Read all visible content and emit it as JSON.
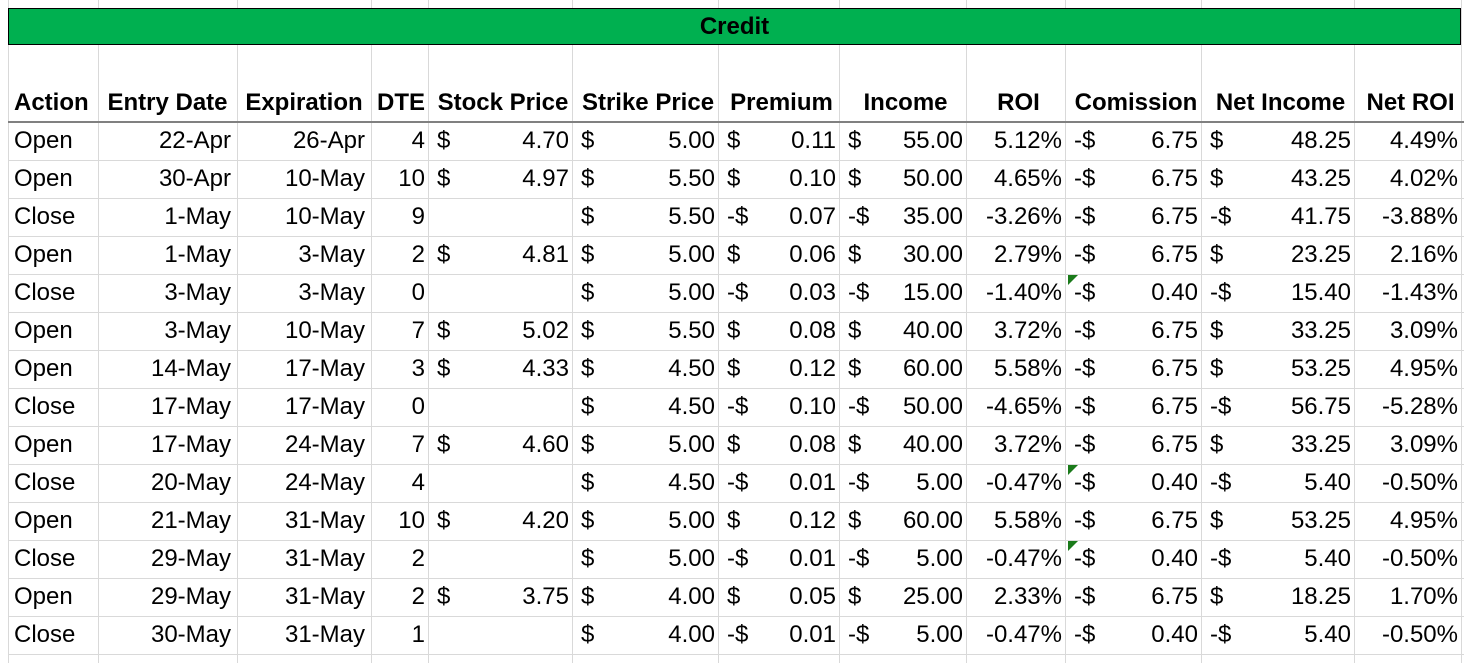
{
  "banner": {
    "title": "Credit",
    "color": "#00b050"
  },
  "columns": [
    "Action",
    "Entry Date",
    "Expiration",
    "DTE",
    "Stock Price",
    "Strike Price",
    "Premium",
    "Income",
    "ROI",
    "Comission",
    "Net Income",
    "Net ROI"
  ],
  "rows": [
    {
      "action": "Open",
      "entry": "22-Apr",
      "exp": "26-Apr",
      "dte": "4",
      "stock": "4.70",
      "stock_sign": "$",
      "strike": "5.00",
      "prem_sign": "$",
      "prem": "0.11",
      "inc_sign": "$",
      "inc": "55.00",
      "roi": "5.12%",
      "com_sign": "-$",
      "com": "6.75",
      "net_sign": "$",
      "net": "48.25",
      "netroi": "4.49%",
      "flag": false
    },
    {
      "action": "Open",
      "entry": "30-Apr",
      "exp": "10-May",
      "dte": "10",
      "stock": "4.97",
      "stock_sign": "$",
      "strike": "5.50",
      "prem_sign": "$",
      "prem": "0.10",
      "inc_sign": "$",
      "inc": "50.00",
      "roi": "4.65%",
      "com_sign": "-$",
      "com": "6.75",
      "net_sign": "$",
      "net": "43.25",
      "netroi": "4.02%",
      "flag": false
    },
    {
      "action": "Close",
      "entry": "1-May",
      "exp": "10-May",
      "dte": "9",
      "stock": "",
      "stock_sign": "",
      "strike": "5.50",
      "prem_sign": "-$",
      "prem": "0.07",
      "inc_sign": "-$",
      "inc": "35.00",
      "roi": "-3.26%",
      "com_sign": "-$",
      "com": "6.75",
      "net_sign": "-$",
      "net": "41.75",
      "netroi": "-3.88%",
      "flag": false
    },
    {
      "action": "Open",
      "entry": "1-May",
      "exp": "3-May",
      "dte": "2",
      "stock": "4.81",
      "stock_sign": "$",
      "strike": "5.00",
      "prem_sign": "$",
      "prem": "0.06",
      "inc_sign": "$",
      "inc": "30.00",
      "roi": "2.79%",
      "com_sign": "-$",
      "com": "6.75",
      "net_sign": "$",
      "net": "23.25",
      "netroi": "2.16%",
      "flag": false
    },
    {
      "action": "Close",
      "entry": "3-May",
      "exp": "3-May",
      "dte": "0",
      "stock": "",
      "stock_sign": "",
      "strike": "5.00",
      "prem_sign": "-$",
      "prem": "0.03",
      "inc_sign": "-$",
      "inc": "15.00",
      "roi": "-1.40%",
      "com_sign": "-$",
      "com": "0.40",
      "net_sign": "-$",
      "net": "15.40",
      "netroi": "-1.43%",
      "flag": true
    },
    {
      "action": "Open",
      "entry": "3-May",
      "exp": "10-May",
      "dte": "7",
      "stock": "5.02",
      "stock_sign": "$",
      "strike": "5.50",
      "prem_sign": "$",
      "prem": "0.08",
      "inc_sign": "$",
      "inc": "40.00",
      "roi": "3.72%",
      "com_sign": "-$",
      "com": "6.75",
      "net_sign": "$",
      "net": "33.25",
      "netroi": "3.09%",
      "flag": false
    },
    {
      "action": "Open",
      "entry": "14-May",
      "exp": "17-May",
      "dte": "3",
      "stock": "4.33",
      "stock_sign": "$",
      "strike": "4.50",
      "prem_sign": "$",
      "prem": "0.12",
      "inc_sign": "$",
      "inc": "60.00",
      "roi": "5.58%",
      "com_sign": "-$",
      "com": "6.75",
      "net_sign": "$",
      "net": "53.25",
      "netroi": "4.95%",
      "flag": false
    },
    {
      "action": "Close",
      "entry": "17-May",
      "exp": "17-May",
      "dte": "0",
      "stock": "",
      "stock_sign": "",
      "strike": "4.50",
      "prem_sign": "-$",
      "prem": "0.10",
      "inc_sign": "-$",
      "inc": "50.00",
      "roi": "-4.65%",
      "com_sign": "-$",
      "com": "6.75",
      "net_sign": "-$",
      "net": "56.75",
      "netroi": "-5.28%",
      "flag": false
    },
    {
      "action": "Open",
      "entry": "17-May",
      "exp": "24-May",
      "dte": "7",
      "stock": "4.60",
      "stock_sign": "$",
      "strike": "5.00",
      "prem_sign": "$",
      "prem": "0.08",
      "inc_sign": "$",
      "inc": "40.00",
      "roi": "3.72%",
      "com_sign": "-$",
      "com": "6.75",
      "net_sign": "$",
      "net": "33.25",
      "netroi": "3.09%",
      "flag": false
    },
    {
      "action": "Close",
      "entry": "20-May",
      "exp": "24-May",
      "dte": "4",
      "stock": "",
      "stock_sign": "",
      "strike": "4.50",
      "prem_sign": "-$",
      "prem": "0.01",
      "inc_sign": "-$",
      "inc": "5.00",
      "roi": "-0.47%",
      "com_sign": "-$",
      "com": "0.40",
      "net_sign": "-$",
      "net": "5.40",
      "netroi": "-0.50%",
      "flag": true
    },
    {
      "action": "Open",
      "entry": "21-May",
      "exp": "31-May",
      "dte": "10",
      "stock": "4.20",
      "stock_sign": "$",
      "strike": "5.00",
      "prem_sign": "$",
      "prem": "0.12",
      "inc_sign": "$",
      "inc": "60.00",
      "roi": "5.58%",
      "com_sign": "-$",
      "com": "6.75",
      "net_sign": "$",
      "net": "53.25",
      "netroi": "4.95%",
      "flag": false
    },
    {
      "action": "Close",
      "entry": "29-May",
      "exp": "31-May",
      "dte": "2",
      "stock": "",
      "stock_sign": "",
      "strike": "5.00",
      "prem_sign": "-$",
      "prem": "0.01",
      "inc_sign": "-$",
      "inc": "5.00",
      "roi": "-0.47%",
      "com_sign": "-$",
      "com": "0.40",
      "net_sign": "-$",
      "net": "5.40",
      "netroi": "-0.50%",
      "flag": true
    },
    {
      "action": "Open",
      "entry": "29-May",
      "exp": "31-May",
      "dte": "2",
      "stock": "3.75",
      "stock_sign": "$",
      "strike": "4.00",
      "prem_sign": "$",
      "prem": "0.05",
      "inc_sign": "$",
      "inc": "25.00",
      "roi": "2.33%",
      "com_sign": "-$",
      "com": "6.75",
      "net_sign": "$",
      "net": "18.25",
      "netroi": "1.70%",
      "flag": false
    },
    {
      "action": "Close",
      "entry": "30-May",
      "exp": "31-May",
      "dte": "1",
      "stock": "",
      "stock_sign": "",
      "strike": "4.00",
      "prem_sign": "-$",
      "prem": "0.01",
      "inc_sign": "-$",
      "inc": "5.00",
      "roi": "-0.47%",
      "com_sign": "-$",
      "com": "0.40",
      "net_sign": "-$",
      "net": "5.40",
      "netroi": "-0.50%",
      "flag": false
    }
  ]
}
